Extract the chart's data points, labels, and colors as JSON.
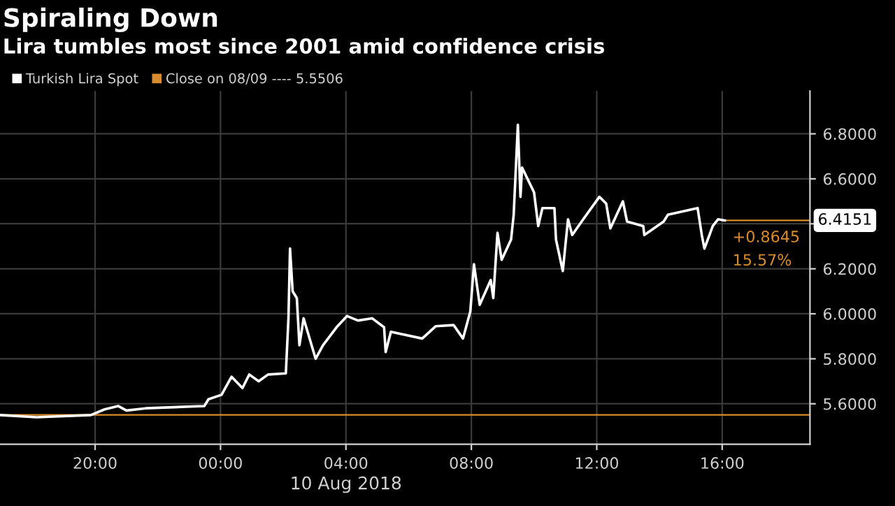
{
  "chart_data": {
    "type": "line",
    "title": "Spiraling Down",
    "subtitle": "Lira tumbles most since 2001 amid confidence crisis",
    "xlabel": "10 Aug 2018",
    "x": [
      "2018-08-09T16:58",
      "2018-08-09T18:08",
      "2018-08-09T19:52",
      "2018-08-09T20:18",
      "2018-08-09T20:44",
      "2018-08-09T21:00",
      "2018-08-09T21:37",
      "2018-08-09T23:29",
      "2018-08-09T23:37",
      "2018-08-10T00:02",
      "2018-08-10T00:21",
      "2018-08-10T00:42",
      "2018-08-10T00:55",
      "2018-08-10T01:13",
      "2018-08-10T01:31",
      "2018-08-10T02:05",
      "2018-08-10T02:10",
      "2018-08-10T02:13",
      "2018-08-10T02:18",
      "2018-08-10T02:26",
      "2018-08-10T02:31",
      "2018-08-10T02:39",
      "2018-08-10T03:02",
      "2018-08-10T03:16",
      "2018-08-10T03:42",
      "2018-08-10T04:02",
      "2018-08-10T04:23",
      "2018-08-10T04:50",
      "2018-08-10T05:13",
      "2018-08-10T05:16",
      "2018-08-10T05:26",
      "2018-08-10T06:26",
      "2018-08-10T06:52",
      "2018-08-10T07:26",
      "2018-08-10T07:44",
      "2018-08-10T07:58",
      "2018-08-10T08:05",
      "2018-08-10T08:16",
      "2018-08-10T08:37",
      "2018-08-10T08:42",
      "2018-08-10T08:50",
      "2018-08-10T08:58",
      "2018-08-10T09:16",
      "2018-08-10T09:21",
      "2018-08-10T09:29",
      "2018-08-10T09:34",
      "2018-08-10T09:37",
      "2018-08-10T10:00",
      "2018-08-10T10:08",
      "2018-08-10T10:16",
      "2018-08-10T10:39",
      "2018-08-10T10:42",
      "2018-08-10T10:55",
      "2018-08-10T11:05",
      "2018-08-10T11:13",
      "2018-08-10T11:31",
      "2018-08-10T12:05",
      "2018-08-10T12:18",
      "2018-08-10T12:26",
      "2018-08-10T12:50",
      "2018-08-10T12:58",
      "2018-08-10T13:29",
      "2018-08-10T13:31",
      "2018-08-10T14:08",
      "2018-08-10T14:16",
      "2018-08-10T15:13",
      "2018-08-10T15:21",
      "2018-08-10T15:26",
      "2018-08-10T15:42",
      "2018-08-10T15:52",
      "2018-08-10T16:05"
    ],
    "series": [
      {
        "name": "Turkish Lira Spot",
        "color": "#ffffff",
        "values": [
          5.55,
          5.54,
          5.55,
          5.575,
          5.59,
          5.57,
          5.58,
          5.59,
          5.62,
          5.64,
          5.72,
          5.67,
          5.73,
          5.7,
          5.73,
          5.735,
          5.98,
          6.29,
          6.1,
          6.07,
          5.86,
          5.98,
          5.8,
          5.86,
          5.94,
          5.99,
          5.97,
          5.98,
          5.94,
          5.83,
          5.92,
          5.89,
          5.945,
          5.95,
          5.89,
          6.01,
          6.22,
          6.04,
          6.15,
          6.07,
          6.36,
          6.24,
          6.33,
          6.44,
          6.84,
          6.52,
          6.65,
          6.54,
          6.39,
          6.47,
          6.47,
          6.33,
          6.19,
          6.42,
          6.35,
          6.41,
          6.52,
          6.49,
          6.38,
          6.5,
          6.41,
          6.39,
          6.35,
          6.41,
          6.44,
          6.47,
          6.35,
          6.29,
          6.39,
          6.42,
          6.4151
        ]
      }
    ],
    "ref_lines": [
      {
        "axis": "y",
        "value": 5.5506,
        "label": "Close on 08/09 ---- 5.5506",
        "color": "#d98c2b"
      }
    ],
    "annotations": [
      {
        "text": "6.4151",
        "x": "2018-08-10T16:05",
        "y": 6.4151
      },
      "+0.8645",
      "15.57%"
    ],
    "xlim": [
      "2018-08-09T16:58",
      "2018-08-10T18:48"
    ],
    "ylim": [
      5.42,
      6.99
    ],
    "xticks": [
      {
        "value": "2018-08-09T20:00",
        "label": "20:00"
      },
      {
        "value": "2018-08-10T00:00",
        "label": "00:00"
      },
      {
        "value": "2018-08-10T04:00",
        "label": "04:00"
      },
      {
        "value": "2018-08-10T08:00",
        "label": "08:00"
      },
      {
        "value": "2018-08-10T12:00",
        "label": "12:00"
      },
      {
        "value": "2018-08-10T16:00",
        "label": "16:00"
      }
    ],
    "yticks": [
      {
        "value": 5.6,
        "label": "5.6000"
      },
      {
        "value": 5.8,
        "label": "5.8000"
      },
      {
        "value": 6.0,
        "label": "6.0000"
      },
      {
        "value": 6.2,
        "label": "6.2000"
      },
      {
        "value": 6.4,
        "label": null
      },
      {
        "value": 6.6,
        "label": "6.6000"
      },
      {
        "value": 6.8,
        "label": "6.8000"
      }
    ],
    "grid": true,
    "legend": "top left",
    "line_style": "solid",
    "marker": "none"
  }
}
